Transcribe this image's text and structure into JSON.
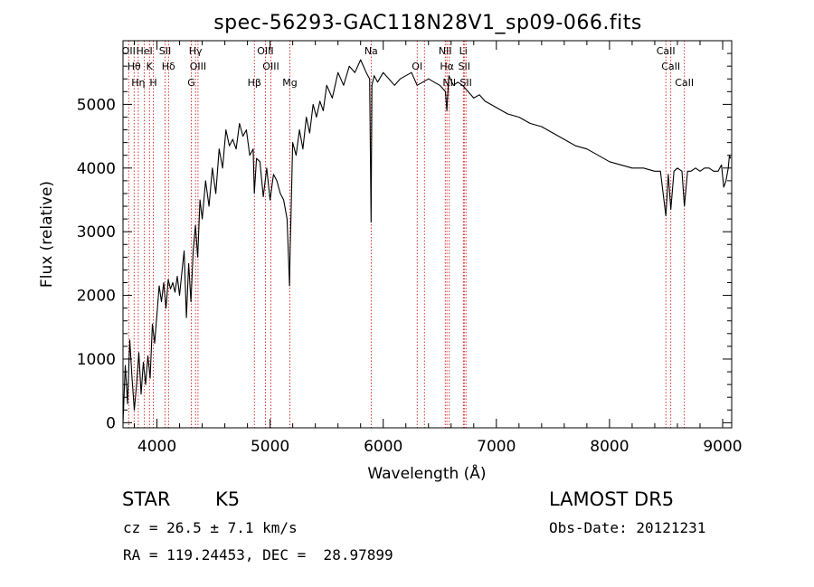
{
  "chart_data": {
    "type": "line",
    "title": "spec-56293-GAC118N28V1_sp09-066.fits",
    "xlabel": "Wavelength (Å)",
    "ylabel": "Flux (relative)",
    "xlim": [
      3700,
      9080
    ],
    "ylim": [
      -80,
      6000
    ],
    "x_ticks": [
      4000,
      5000,
      6000,
      7000,
      8000,
      9000
    ],
    "x_tick_labels": [
      "4000",
      "5000",
      "6000",
      "7000",
      "8000",
      "9000"
    ],
    "y_ticks": [
      0,
      1000,
      2000,
      3000,
      4000,
      5000
    ],
    "y_tick_labels": [
      "0",
      "1000",
      "2000",
      "3000",
      "4000",
      "5000"
    ],
    "grid": false,
    "series": [
      {
        "color": "#000000",
        "x": [
          3700,
          3720,
          3740,
          3760,
          3780,
          3800,
          3820,
          3840,
          3860,
          3880,
          3900,
          3920,
          3940,
          3960,
          3980,
          4000,
          4020,
          4040,
          4060,
          4080,
          4100,
          4120,
          4140,
          4160,
          4180,
          4200,
          4220,
          4240,
          4260,
          4280,
          4300,
          4320,
          4340,
          4360,
          4380,
          4400,
          4430,
          4460,
          4490,
          4520,
          4550,
          4580,
          4610,
          4640,
          4670,
          4700,
          4730,
          4760,
          4790,
          4820,
          4850,
          4861,
          4880,
          4910,
          4940,
          4970,
          5000,
          5030,
          5060,
          5090,
          5120,
          5150,
          5167,
          5172,
          5178,
          5183,
          5200,
          5230,
          5260,
          5290,
          5320,
          5350,
          5380,
          5410,
          5440,
          5470,
          5500,
          5550,
          5600,
          5650,
          5700,
          5750,
          5800,
          5850,
          5880,
          5893,
          5900,
          5920,
          5950,
          6000,
          6050,
          6100,
          6150,
          6200,
          6250,
          6300,
          6350,
          6400,
          6450,
          6500,
          6550,
          6563,
          6580,
          6620,
          6660,
          6700,
          6750,
          6800,
          6850,
          6900,
          6950,
          7000,
          7100,
          7200,
          7300,
          7400,
          7500,
          7600,
          7700,
          7800,
          7900,
          8000,
          8100,
          8200,
          8300,
          8400,
          8450,
          8498,
          8520,
          8542,
          8570,
          8600,
          8640,
          8662,
          8690,
          8720,
          8760,
          8800,
          8840,
          8880,
          8920,
          8960,
          8990,
          9010,
          9030,
          9050,
          9060,
          9070
        ],
        "y": [
          0,
          900,
          300,
          1300,
          700,
          200,
          600,
          1100,
          450,
          950,
          600,
          1050,
          700,
          1550,
          1250,
          1700,
          2150,
          1900,
          2200,
          1800,
          2250,
          2100,
          2200,
          2050,
          2300,
          2000,
          2350,
          2700,
          1650,
          2500,
          1900,
          2700,
          3100,
          2600,
          3500,
          3200,
          3800,
          3400,
          4000,
          3600,
          4300,
          4000,
          4600,
          4350,
          4450,
          4300,
          4700,
          4500,
          4600,
          4200,
          4300,
          3600,
          4150,
          4100,
          3550,
          4000,
          3500,
          3900,
          3800,
          3600,
          3500,
          3200,
          2400,
          2150,
          2800,
          3100,
          4400,
          4200,
          4600,
          4300,
          4800,
          4550,
          5000,
          4800,
          5050,
          4900,
          5300,
          5100,
          5500,
          5300,
          5600,
          5500,
          5700,
          5500,
          5400,
          3150,
          5300,
          5450,
          5350,
          5500,
          5400,
          5300,
          5400,
          5450,
          5500,
          5300,
          5350,
          5400,
          5350,
          5300,
          5200,
          4900,
          5450,
          5300,
          5350,
          5300,
          5200,
          5100,
          5150,
          5050,
          5000,
          4950,
          4850,
          4800,
          4700,
          4650,
          4550,
          4450,
          4350,
          4300,
          4200,
          4100,
          4050,
          4000,
          4000,
          3950,
          3950,
          3250,
          3900,
          3350,
          3950,
          4000,
          3950,
          3400,
          3950,
          3950,
          4000,
          3950,
          4000,
          4000,
          3950,
          3950,
          4050,
          3700,
          3800,
          4000,
          4200,
          4150
        ]
      }
    ],
    "line_markers": [
      {
        "x": 3750,
        "labels": [
          "OII"
        ]
      },
      {
        "x": 3798,
        "labels": [
          "Hθ"
        ]
      },
      {
        "x": 3835,
        "labels": [
          "Hη"
        ]
      },
      {
        "x": 3889,
        "labels": [
          "HeI"
        ]
      },
      {
        "x": 3934,
        "labels": [
          "K"
        ]
      },
      {
        "x": 3968,
        "labels": [
          "H"
        ]
      },
      {
        "x": 4072,
        "labels": [
          "SII"
        ]
      },
      {
        "x": 4102,
        "labels": [
          "Hδ"
        ]
      },
      {
        "x": 4304,
        "labels": [
          "G"
        ]
      },
      {
        "x": 4341,
        "labels": [
          "Hγ"
        ]
      },
      {
        "x": 4363,
        "labels": [
          "OIII"
        ]
      },
      {
        "x": 4861,
        "labels": [
          "Hβ"
        ]
      },
      {
        "x": 4959,
        "labels": [
          "OIII"
        ]
      },
      {
        "x": 5007,
        "labels": [
          "OIII"
        ]
      },
      {
        "x": 5175,
        "labels": [
          "Mg"
        ]
      },
      {
        "x": 5893,
        "labels": [
          "Na"
        ]
      },
      {
        "x": 6300,
        "labels": [
          "OI"
        ]
      },
      {
        "x": 6364,
        "labels": []
      },
      {
        "x": 6548,
        "labels": [
          "NII"
        ]
      },
      {
        "x": 6563,
        "labels": [
          "Hα"
        ]
      },
      {
        "x": 6584,
        "labels": [
          "NII"
        ]
      },
      {
        "x": 6708,
        "labels": [
          "Li"
        ]
      },
      {
        "x": 6716,
        "labels": [
          "SII"
        ]
      },
      {
        "x": 6731,
        "labels": [
          "SII"
        ]
      },
      {
        "x": 8498,
        "labels": [
          "CaII"
        ]
      },
      {
        "x": 8542,
        "labels": [
          "CaII"
        ]
      },
      {
        "x": 8662,
        "labels": [
          "CaII"
        ]
      }
    ]
  },
  "info": {
    "object_type": "STAR",
    "subclass": "K5",
    "survey": "LAMOST DR5",
    "redshift": "cz = 26.5 ± 7.1 km/s",
    "obs_date": "Obs-Date: 20121231",
    "coords": "RA = 119.24453, DEC =  28.97899"
  },
  "colors": {
    "line_marker": "#cc0000",
    "axis": "#000000",
    "spectrum": "#000000"
  }
}
